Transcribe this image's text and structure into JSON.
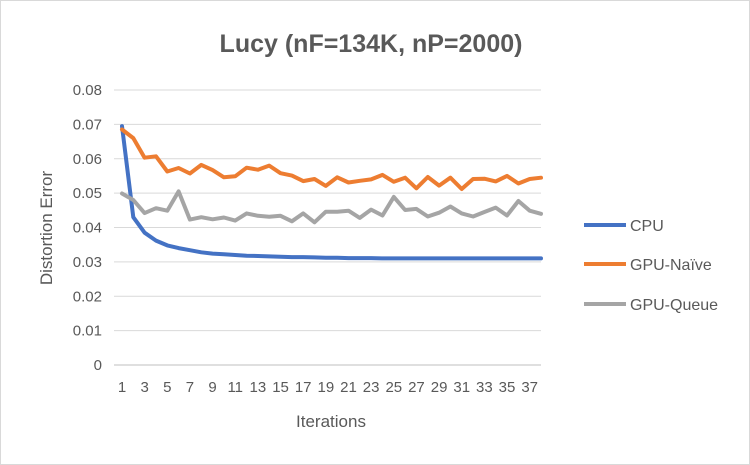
{
  "chart_data": {
    "type": "line",
    "title": "Lucy (nF=134K, nP=2000)",
    "xlabel": "Iterations",
    "ylabel": "Distortion Error",
    "ylim": [
      0,
      0.08
    ],
    "yticks": [
      "0",
      "0.01",
      "0.02",
      "0.03",
      "0.04",
      "0.05",
      "0.06",
      "0.07",
      "0.08"
    ],
    "x": [
      1,
      2,
      3,
      4,
      5,
      6,
      7,
      8,
      9,
      10,
      11,
      12,
      13,
      14,
      15,
      16,
      17,
      18,
      19,
      20,
      21,
      22,
      23,
      24,
      25,
      26,
      27,
      28,
      29,
      30,
      31,
      32,
      33,
      34,
      35,
      36,
      37,
      38
    ],
    "xtick_labels": [
      "1",
      "3",
      "5",
      "7",
      "9",
      "11",
      "13",
      "15",
      "17",
      "19",
      "21",
      "23",
      "25",
      "27",
      "29",
      "31",
      "33",
      "35",
      "37"
    ],
    "grid": "horizontal",
    "legend_position": "right",
    "series": [
      {
        "name": "CPU",
        "color": "#4472c4",
        "values": [
          0.0695,
          0.043,
          0.0385,
          0.0362,
          0.0348,
          0.034,
          0.0334,
          0.0328,
          0.0324,
          0.0322,
          0.032,
          0.0318,
          0.0317,
          0.0316,
          0.0315,
          0.0314,
          0.0314,
          0.0313,
          0.0312,
          0.0312,
          0.0311,
          0.0311,
          0.0311,
          0.031,
          0.031,
          0.031,
          0.031,
          0.031,
          0.031,
          0.031,
          0.031,
          0.031,
          0.031,
          0.031,
          0.031,
          0.031,
          0.031,
          0.031
        ]
      },
      {
        "name": "GPU-Naïve",
        "color": "#ed7d31",
        "values": [
          0.0685,
          0.066,
          0.0603,
          0.0607,
          0.0563,
          0.0573,
          0.0557,
          0.0582,
          0.0567,
          0.0546,
          0.0549,
          0.0574,
          0.0568,
          0.058,
          0.0558,
          0.0551,
          0.0535,
          0.0541,
          0.0521,
          0.0546,
          0.0531,
          0.0536,
          0.054,
          0.0553,
          0.0533,
          0.0545,
          0.0514,
          0.0547,
          0.0522,
          0.0545,
          0.0512,
          0.0541,
          0.0542,
          0.0534,
          0.055,
          0.0528,
          0.0541,
          0.0545
        ]
      },
      {
        "name": "GPU-Queue",
        "color": "#a5a5a5",
        "values": [
          0.0499,
          0.048,
          0.0442,
          0.0456,
          0.0449,
          0.0505,
          0.0423,
          0.043,
          0.0424,
          0.0429,
          0.042,
          0.0441,
          0.0434,
          0.0431,
          0.0434,
          0.0418,
          0.0441,
          0.0415,
          0.0446,
          0.0446,
          0.0449,
          0.0428,
          0.0452,
          0.0435,
          0.0489,
          0.0451,
          0.0454,
          0.0432,
          0.0443,
          0.0461,
          0.0441,
          0.0432,
          0.0445,
          0.0458,
          0.0435,
          0.0477,
          0.0449,
          0.044
        ]
      }
    ]
  }
}
